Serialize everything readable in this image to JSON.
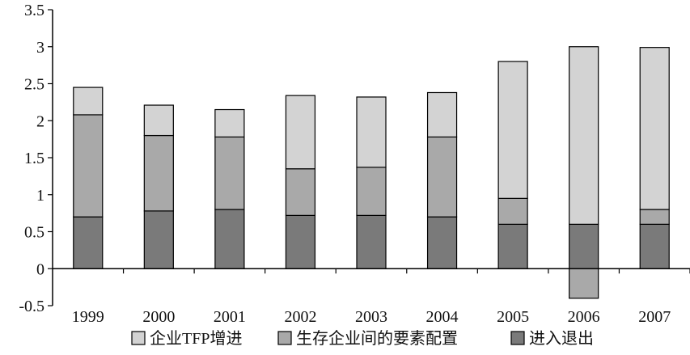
{
  "chart_data": {
    "type": "bar",
    "stacked": true,
    "categories": [
      "1999",
      "2000",
      "2001",
      "2002",
      "2003",
      "2004",
      "2005",
      "2006",
      "2007"
    ],
    "series": [
      {
        "name": "进入退出",
        "color": "#7a7a7a",
        "values": [
          0.7,
          0.78,
          0.8,
          0.72,
          0.72,
          0.7,
          0.6,
          0.6,
          0.6
        ]
      },
      {
        "name": "生存企业间的要素配置",
        "color": "#a9a9a9",
        "values": [
          1.38,
          1.02,
          0.98,
          0.63,
          0.65,
          1.08,
          0.35,
          -0.4,
          0.2
        ]
      },
      {
        "name": "企业TFP增进",
        "color": "#d3d3d3",
        "values": [
          0.37,
          0.41,
          0.37,
          0.99,
          0.95,
          0.6,
          1.85,
          2.4,
          2.19
        ]
      }
    ],
    "ylim": [
      -0.5,
      3.5
    ],
    "yticks": [
      -0.5,
      0,
      0.5,
      1,
      1.5,
      2,
      2.5,
      3,
      3.5
    ],
    "ytick_labels": [
      "-0.5",
      "0",
      "0.5",
      "1",
      "1.5",
      "2",
      "2.5",
      "3",
      "3.5"
    ],
    "legend": {
      "position": "bottom",
      "order": [
        "企业TFP增进",
        "生存企业间的要素配置",
        "进入退出"
      ]
    },
    "grid": false
  }
}
